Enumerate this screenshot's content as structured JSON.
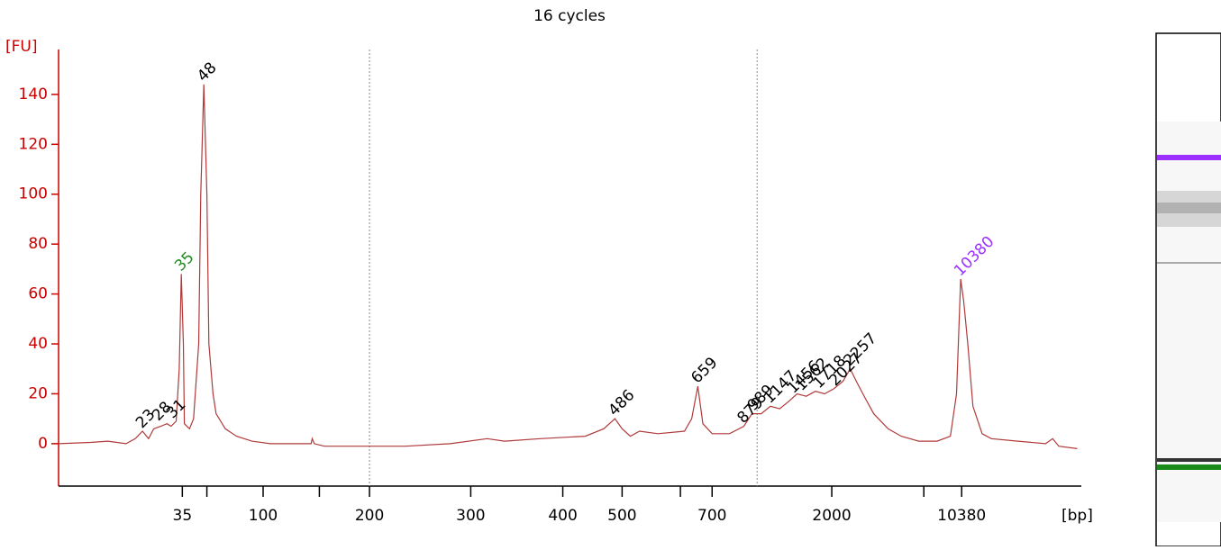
{
  "chart_data": {
    "type": "line",
    "title": "16 cycles",
    "ylabel": "[FU]",
    "xlabel": "[bp]",
    "ylim": [
      -17,
      158
    ],
    "yticks": [
      0,
      20,
      40,
      60,
      80,
      100,
      120,
      140
    ],
    "xlim": [
      0,
      100
    ],
    "xticks": [
      {
        "value": 12.1,
        "label": "35"
      },
      {
        "value": 20.0,
        "label": "100"
      },
      {
        "value": 30.4,
        "label": "200"
      },
      {
        "value": 40.3,
        "label": "300"
      },
      {
        "value": 49.3,
        "label": "400"
      },
      {
        "value": 55.1,
        "label": "500"
      },
      {
        "value": 63.9,
        "label": "700"
      },
      {
        "value": 75.6,
        "label": "2000"
      },
      {
        "value": 88.3,
        "label": "10380"
      }
    ],
    "xminorticks": [
      14.5,
      25.5,
      60.8,
      84.6
    ],
    "xlines": [
      30.4,
      68.3
    ],
    "series": [
      {
        "color": "#b03a3a",
        "x": [
          0,
          3.1,
          4.8,
          6.6,
          7.5,
          8.2,
          8.8,
          9.3,
          10.0,
          10.6,
          11.0,
          11.5,
          11.8,
          12.0,
          12.2,
          12.3,
          12.8,
          13.2,
          13.7,
          13.9,
          14.2,
          14.5,
          14.7,
          15.1,
          15.4,
          16.3,
          17.4,
          18.9,
          20.7,
          24.7,
          24.8,
          25.0,
          26.0,
          29.5,
          33.9,
          38.3,
          41.9,
          43.6,
          47.1,
          51.5,
          53.3,
          54.4,
          55.1,
          55.9,
          56.8,
          58.6,
          61.2,
          61.9,
          62.5,
          63.0,
          63.9,
          65.6,
          67.0,
          67.8,
          68.7,
          69.6,
          70.5,
          71.4,
          72.2,
          73.1,
          74.0,
          74.9,
          75.8,
          76.7,
          77.4,
          78.0,
          78.9,
          79.7,
          81.1,
          82.4,
          84.1,
          85.9,
          87.2,
          87.8,
          88.2,
          88.5,
          88.9,
          89.4,
          90.3,
          91.2,
          93.8,
          96.5,
          97.2,
          97.8,
          99.6
        ],
        "values": [
          0,
          0.5,
          1,
          0,
          2,
          5,
          2,
          6,
          7,
          8,
          7,
          9,
          30,
          68,
          40,
          8,
          6,
          10,
          40,
          100,
          144,
          100,
          40,
          20,
          12,
          6,
          3,
          1,
          0,
          0,
          2,
          0,
          -1,
          -1,
          -1,
          0,
          2,
          1,
          2,
          3,
          6,
          10,
          6,
          3,
          5,
          4,
          5,
          10,
          23,
          8,
          4,
          4,
          7,
          12,
          12,
          15,
          14,
          17,
          20,
          19,
          21,
          20,
          22,
          25,
          30,
          25,
          18,
          12,
          6,
          3,
          1,
          1,
          3,
          20,
          66,
          57,
          40,
          15,
          4,
          2,
          1,
          0,
          2,
          -1,
          -2
        ]
      }
    ],
    "peaks": [
      {
        "label": "23",
        "x": 8.2,
        "y": 5,
        "color": "#000000"
      },
      {
        "label": "28",
        "x": 9.8,
        "y": 8,
        "color": "#000000"
      },
      {
        "label": "31",
        "x": 11.2,
        "y": 9,
        "color": "#000000"
      },
      {
        "label": "35",
        "x": 12.0,
        "y": 68,
        "color": "#228b22"
      },
      {
        "label": "48",
        "x": 14.2,
        "y": 144,
        "color": "#000000"
      },
      {
        "label": "486",
        "x": 54.4,
        "y": 10,
        "color": "#000000"
      },
      {
        "label": "659",
        "x": 62.5,
        "y": 23,
        "color": "#000000"
      },
      {
        "label": "879",
        "x": 67.0,
        "y": 7,
        "color": "#000000"
      },
      {
        "label": "989",
        "x": 68.0,
        "y": 12,
        "color": "#000000"
      },
      {
        "label": "1147",
        "x": 69.6,
        "y": 15,
        "color": "#000000"
      },
      {
        "label": "1456",
        "x": 71.9,
        "y": 19,
        "color": "#000000"
      },
      {
        "label": "1562",
        "x": 72.7,
        "y": 20,
        "color": "#000000"
      },
      {
        "label": "1718",
        "x": 74.4,
        "y": 21,
        "color": "#000000"
      },
      {
        "label": "2027",
        "x": 76.0,
        "y": 22,
        "color": "#000000"
      },
      {
        "label": "2257",
        "x": 77.4,
        "y": 30,
        "color": "#000000"
      },
      {
        "label": "10380",
        "x": 88.2,
        "y": 66,
        "color": "#9b30ff"
      }
    ]
  }
}
